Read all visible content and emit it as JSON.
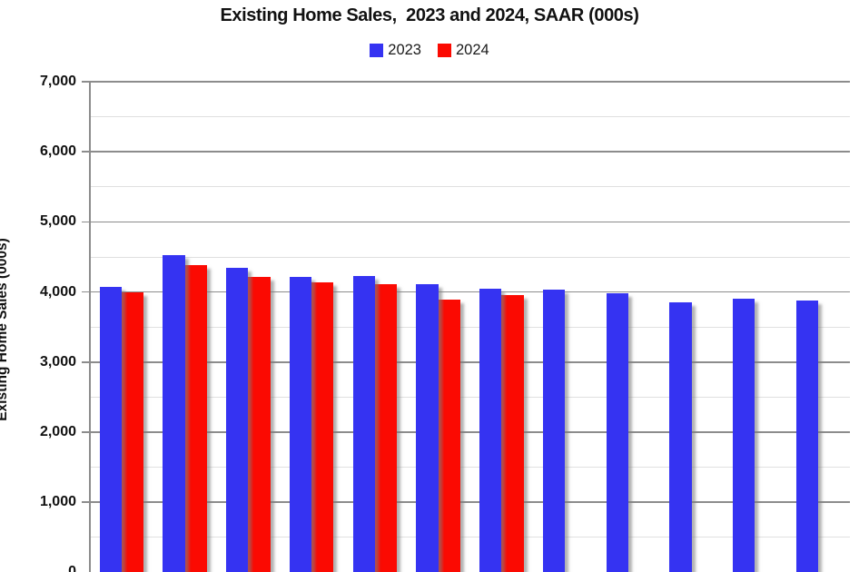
{
  "title": "Existing Home Sales,  2023 and 2024, SAAR (000s)",
  "legend": [
    {
      "label": "2023",
      "color": "#3533f2"
    },
    {
      "label": "2024",
      "color": "#fb0a02"
    }
  ],
  "y_axis": {
    "title": "Existing Home Sales (000s)",
    "tick_labels": [
      "7,000",
      "6,000",
      "5,000",
      "4,000",
      "3,000",
      "2,000",
      "1,000",
      "0"
    ],
    "min": 0,
    "max": 7000,
    "major_step": 1000,
    "minor_step": 500
  },
  "chart_data": {
    "type": "bar",
    "title": "Existing Home Sales,  2023 and 2024, SAAR (000s)",
    "xlabel": "",
    "ylabel": "Existing Home Sales (000s)",
    "ylim": [
      0,
      7000
    ],
    "grid": true,
    "minor_grid": true,
    "legend_position": "top",
    "group_count": 12,
    "x_axis_labels_visible": false,
    "series": [
      {
        "name": "2023",
        "color": "#3533f2",
        "values": [
          4070,
          4530,
          4350,
          4220,
          4230,
          4110,
          4050,
          4030,
          3980,
          3850,
          3910,
          3880
        ]
      },
      {
        "name": "2024",
        "color": "#fb0a02",
        "values": [
          4000,
          4380,
          4220,
          4140,
          4110,
          3890,
          3950
        ]
      }
    ]
  },
  "colors": {
    "major_gridline": "#8c8c8c",
    "minor_gridline": "#e0e0e0",
    "axis": "#8c8c8c",
    "bar_2023": "#3533f2",
    "bar_2024": "#fb0a02"
  }
}
